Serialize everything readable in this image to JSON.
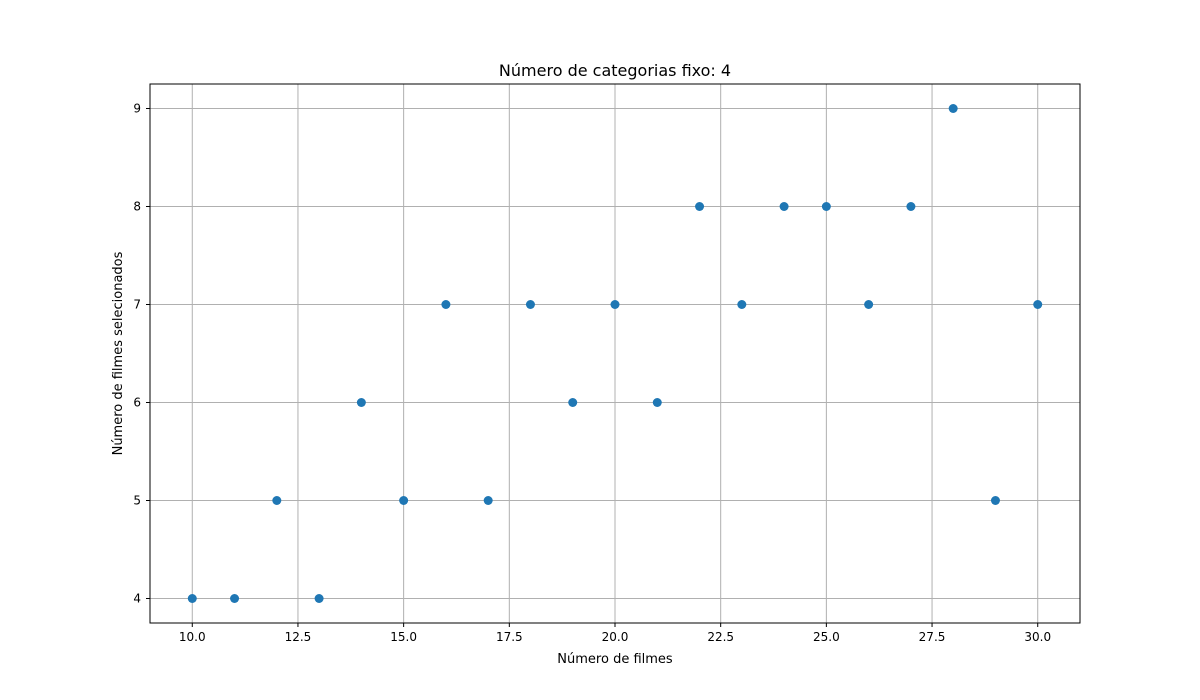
{
  "chart_data": {
    "type": "scatter",
    "title": "Número de categorias fixo: 4",
    "xlabel": "Número de filmes",
    "ylabel": "Número de filmes selecionados",
    "xlim": [
      9.0,
      31.0
    ],
    "ylim": [
      3.75,
      9.25
    ],
    "grid": true,
    "x_ticks": [
      "10.0",
      "12.5",
      "15.0",
      "17.5",
      "20.0",
      "22.5",
      "25.0",
      "27.5",
      "30.0"
    ],
    "y_ticks": [
      "4",
      "5",
      "6",
      "7",
      "8",
      "9"
    ],
    "series": [
      {
        "name": "filmes selecionados",
        "color": "#1f77b4",
        "x": [
          10,
          11,
          12,
          13,
          14,
          15,
          16,
          17,
          18,
          19,
          20,
          21,
          22,
          23,
          24,
          25,
          26,
          27,
          28,
          29,
          30
        ],
        "y": [
          4,
          4,
          5,
          4,
          6,
          5,
          7,
          5,
          7,
          6,
          7,
          6,
          8,
          7,
          8,
          8,
          7,
          8,
          9,
          5,
          7
        ]
      }
    ],
    "colors": {
      "grid": "#b0b0b0",
      "axis": "#000000",
      "background": "#ffffff"
    }
  }
}
